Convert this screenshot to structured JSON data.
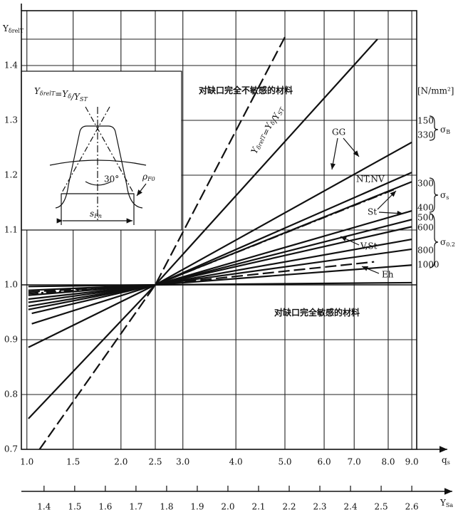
{
  "chart_data": {
    "type": "line",
    "y_label": {
      "main": "Y",
      "sub": "δrelT"
    },
    "x_label": {
      "main": "q",
      "sub": "s"
    },
    "x2_label": {
      "main": "Y",
      "sub": "Sa"
    },
    "xlim": [
      1.326,
      2.616
    ],
    "ylim": [
      0.7,
      1.5
    ],
    "yticks": [
      0.7,
      0.8,
      0.9,
      {
        "value": 1,
        "label": "1.0"
      },
      1.1,
      1.2,
      1.3,
      1.4
    ],
    "xticks": [
      1.4,
      1.5,
      1.6,
      1.7,
      1.8,
      1.9,
      {
        "value": 2,
        "label": "2.0"
      },
      2.1,
      2.2,
      2.3,
      2.4,
      2.5,
      2.6
    ],
    "qs_ticks": [
      {
        "value": 1.344,
        "label": "1.0"
      },
      {
        "value": 1.495,
        "label": "1.5"
      },
      {
        "value": 1.651,
        "label": "2.0"
      },
      {
        "value": 1.763,
        "label": "2.5"
      },
      {
        "value": 1.853,
        "label": "3.0"
      },
      {
        "value": 2.026,
        "label": "4.0"
      },
      {
        "value": 2.186,
        "label": "5.0"
      },
      {
        "value": 2.314,
        "label": "6.0"
      },
      {
        "value": 2.412,
        "label": "7.0"
      },
      {
        "value": 2.523,
        "label": "8.0"
      },
      {
        "value": 2.6,
        "label": "9.0"
      }
    ],
    "grid": true,
    "series": [
      {
        "color": "#111",
        "style": "dashed",
        "x": [
          1.384,
          1.763,
          2.186
        ],
        "values": [
          0.699,
          1.0,
          1.452
        ]
      },
      {
        "color": "#111",
        "style": "solid",
        "x": [
          1.349,
          1.763,
          2.488
        ],
        "values": [
          0.756,
          1.0,
          1.448
        ]
      },
      {
        "color": "#111",
        "style": "solid",
        "x": [
          1.349,
          1.763,
          2.6
        ],
        "values": [
          0.886,
          1.0,
          1.26
        ]
      },
      {
        "color": "#111",
        "style": "solid",
        "x": [
          1.36,
          1.763,
          2.6
        ],
        "values": [
          0.929,
          1.0,
          1.205
        ]
      },
      {
        "color": "#111",
        "style": "solid",
        "x": [
          1.36,
          1.763,
          2.6
        ],
        "values": [
          0.948,
          1.0,
          1.188
        ]
      },
      {
        "color": "#111",
        "style": "dashdot",
        "x": [
          1.349,
          1.763,
          2.547
        ],
        "values": [
          0.984,
          1.0,
          1.175
        ]
      },
      {
        "color": "#111",
        "style": "solid",
        "x": [
          1.349,
          1.763,
          2.6
        ],
        "values": [
          0.955,
          1.0,
          1.135
        ]
      },
      {
        "color": "#111",
        "style": "solid",
        "x": [
          1.349,
          1.763,
          2.6
        ],
        "values": [
          0.968,
          1.0,
          1.119
        ]
      },
      {
        "color": "#111",
        "style": "solid",
        "x": [
          1.349,
          1.763,
          2.6
        ],
        "values": [
          0.974,
          1.0,
          1.106
        ]
      },
      {
        "color": "#111",
        "style": "solid",
        "x": [
          1.349,
          1.763,
          2.6
        ],
        "values": [
          0.961,
          1.0,
          1.083
        ]
      },
      {
        "color": "#111",
        "style": "solid",
        "x": [
          1.349,
          1.763,
          2.6
        ],
        "values": [
          0.981,
          1.0,
          1.065
        ]
      },
      {
        "color": "#111",
        "style": "dashed",
        "x": [
          1.349,
          1.763,
          2.477
        ],
        "values": [
          0.987,
          1.0,
          1.042
        ]
      },
      {
        "color": "#111",
        "style": "solid",
        "x": [
          1.349,
          1.763,
          2.6
        ],
        "values": [
          0.99,
          1.0,
          1.036
        ]
      },
      {
        "color": "#111",
        "style": "solid",
        "x": [
          1.349,
          1.763,
          2.6
        ],
        "values": [
          0.997,
          1.0,
          1.004
        ]
      }
    ],
    "annotations": {
      "formula": [
        {
          "main": "Y",
          "sub": "δrelT"
        },
        {
          "main": "=Y",
          "sub": "δ"
        },
        {
          "main": "/Y",
          "sub": "ST"
        }
      ],
      "line_formula": [
        {
          "main": "Y",
          "sub": "δrelT"
        },
        {
          "main": "=Y",
          "sub": "δ"
        },
        {
          "main": "/Y",
          "sub": "ST"
        }
      ],
      "insensitive": "对缺口完全不敏感的材料",
      "sensitive": "对缺口完全敏感的材料",
      "unit": "[N/mm²]",
      "strengths": [
        "150",
        "330",
        "300",
        "400",
        "500",
        "600",
        "800",
        "1000"
      ],
      "groups": [
        {
          "main": "σ",
          "sub": "B"
        },
        {
          "main": "σ",
          "sub": "s"
        },
        {
          "main": "σ",
          "sub": "0.2"
        }
      ],
      "materials": [
        "GG",
        "NT,NV",
        "St",
        "V,St",
        "Eh"
      ],
      "angle": "30°",
      "radius": {
        "main": "ρ",
        "sub": "F0"
      },
      "thickness": {
        "main": "s",
        "sub": "Fn"
      }
    }
  }
}
